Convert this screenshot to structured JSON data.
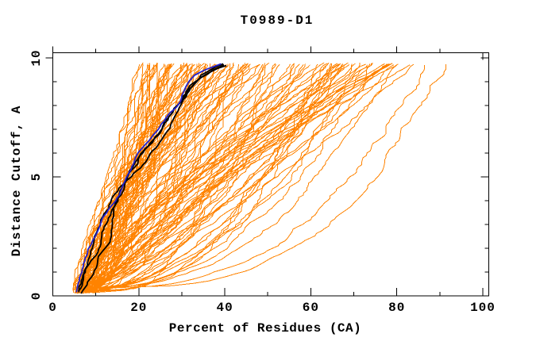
{
  "title": "T0989-D1",
  "chart_data": {
    "type": "line",
    "title": "T0989-D1",
    "xlabel": "Percent of Residues (CA)",
    "ylabel": "Distance Cutoff, A",
    "xlim": [
      0,
      101.3
    ],
    "ylim": [
      0,
      10.23
    ],
    "grid": false,
    "legend": "none",
    "xticks_major": [
      0,
      20,
      40,
      60,
      80,
      100
    ],
    "xtick_labels": [
      "0",
      "20",
      "40",
      "60",
      "80",
      "100"
    ],
    "xticks_minor": [
      10,
      30,
      50,
      70,
      90
    ],
    "yticks_major": [
      0,
      5,
      10
    ],
    "ytick_labels": [
      "0",
      "5",
      "10"
    ],
    "yticks_minor": [
      1,
      2,
      3,
      4,
      6,
      7,
      8,
      9
    ],
    "colors": {
      "background": "#ffffff",
      "frame": "#000000",
      "text": "#000000",
      "ensemble": "#ff8300",
      "highlight": "#000000",
      "reference": "#2222cc"
    },
    "description": "Cumulative distance-cutoff curves (percent of CA residues under each distance cutoff) for ~120 predicted models (orange), with highlighted models in black and a reference model in blue.",
    "ensemble": {
      "name": "all-model-curves",
      "color": "#ff8300",
      "count": 120,
      "seed": 1337,
      "cutoff_start_range": [
        0.1,
        0.35
      ],
      "cutoff_end": 9.8,
      "cutoff_step": 0.1,
      "start_percent_range": [
        4.5,
        10.5
      ],
      "end_percent_min": 21,
      "end_percent_spread": 71,
      "end_skew": 1.35,
      "shape_k_range": [
        0.25,
        1.55
      ],
      "noise_amp": 0.55,
      "stroke_width": 1
    },
    "highlight_curves": [
      {
        "name": "highlight-1",
        "color": "#000000",
        "stroke_width": 1.8,
        "points": [
          [
            6,
            0.15
          ],
          [
            7,
            0.7
          ],
          [
            8,
            1.2
          ],
          [
            10,
            2.0
          ],
          [
            11,
            2.6
          ],
          [
            12,
            3.2
          ],
          [
            14,
            3.9
          ],
          [
            16,
            4.6
          ],
          [
            18,
            5.2
          ],
          [
            20,
            5.8
          ],
          [
            22,
            6.3
          ],
          [
            25,
            6.9
          ],
          [
            27,
            7.4
          ],
          [
            29,
            7.9
          ],
          [
            31,
            8.4
          ],
          [
            33,
            8.9
          ],
          [
            35,
            9.3
          ],
          [
            38,
            9.6
          ],
          [
            41,
            9.8
          ]
        ]
      },
      {
        "name": "highlight-2",
        "color": "#000000",
        "stroke_width": 1.8,
        "points": [
          [
            6.5,
            0.1
          ],
          [
            8.5,
            0.9
          ],
          [
            10.5,
            1.6
          ],
          [
            12.5,
            2.2
          ],
          [
            13,
            2.9
          ],
          [
            13.5,
            3.6
          ],
          [
            15,
            4.2
          ],
          [
            17.5,
            4.8
          ],
          [
            20,
            5.3
          ],
          [
            23,
            5.9
          ],
          [
            26,
            6.5
          ],
          [
            28,
            7.1
          ],
          [
            30,
            7.8
          ],
          [
            32,
            8.5
          ],
          [
            34,
            9.0
          ],
          [
            37,
            9.4
          ],
          [
            40,
            9.7
          ],
          [
            42,
            9.8
          ]
        ]
      },
      {
        "name": "highlight-3",
        "color": "#000000",
        "stroke_width": 1.8,
        "points": [
          [
            5.8,
            0.2
          ],
          [
            7.5,
            1.0
          ],
          [
            9,
            1.8
          ],
          [
            10,
            2.5
          ],
          [
            11.5,
            3.3
          ],
          [
            13.5,
            4.0
          ],
          [
            16,
            4.7
          ],
          [
            18.5,
            5.4
          ],
          [
            21,
            6.0
          ],
          [
            24,
            6.6
          ],
          [
            26.5,
            7.2
          ],
          [
            28.5,
            7.8
          ],
          [
            30.5,
            8.3
          ],
          [
            32.5,
            8.8
          ],
          [
            35,
            9.2
          ],
          [
            38.5,
            9.55
          ],
          [
            41.5,
            9.75
          ]
        ]
      }
    ],
    "reference_curve": {
      "name": "reference-blue",
      "color": "#2222cc",
      "stroke_width": 1.8,
      "points": [
        [
          5.5,
          0.15
        ],
        [
          6.5,
          0.8
        ],
        [
          8,
          1.6
        ],
        [
          9.5,
          2.3
        ],
        [
          11,
          3.0
        ],
        [
          13,
          3.7
        ],
        [
          15,
          4.3
        ],
        [
          17,
          4.9
        ],
        [
          19,
          5.5
        ],
        [
          21,
          6.1
        ],
        [
          24,
          6.8
        ],
        [
          26,
          7.3
        ],
        [
          28,
          7.7
        ],
        [
          30,
          8.1
        ],
        [
          31,
          8.6
        ],
        [
          32.5,
          9.0
        ],
        [
          34,
          9.3
        ],
        [
          36,
          9.5
        ],
        [
          38,
          9.65
        ],
        [
          40,
          9.8
        ]
      ]
    }
  }
}
